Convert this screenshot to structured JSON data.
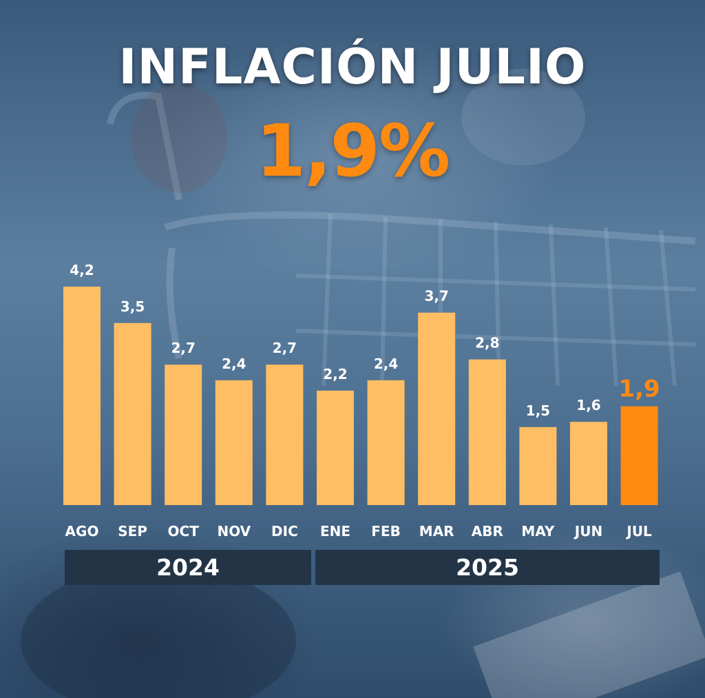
{
  "header": {
    "title": "INFLACIÓN JULIO",
    "headline": "1,9%"
  },
  "years": [
    "2024",
    "2025"
  ],
  "colors": {
    "bar": "#ffbe63",
    "highlight": "#ff8a12",
    "year_band": "#233447",
    "text": "#ffffff"
  },
  "chart_data": {
    "type": "bar",
    "title": "INFLACIÓN JULIO",
    "categories": [
      "AGO",
      "SEP",
      "OCT",
      "NOV",
      "DIC",
      "ENE",
      "FEB",
      "MAR",
      "ABR",
      "MAY",
      "JUN",
      "JUL"
    ],
    "values": [
      4.2,
      3.5,
      2.7,
      2.4,
      2.7,
      2.2,
      2.4,
      3.7,
      2.8,
      1.5,
      1.6,
      1.9
    ],
    "labels": [
      "4,2",
      "3,5",
      "2,7",
      "2,4",
      "2,7",
      "2,2",
      "2,4",
      "3,7",
      "2,8",
      "1,5",
      "1,6",
      "1,9"
    ],
    "highlight_index": 11,
    "ylim": [
      0,
      4.2
    ],
    "xlabel": "",
    "ylabel": "",
    "grid": false
  }
}
